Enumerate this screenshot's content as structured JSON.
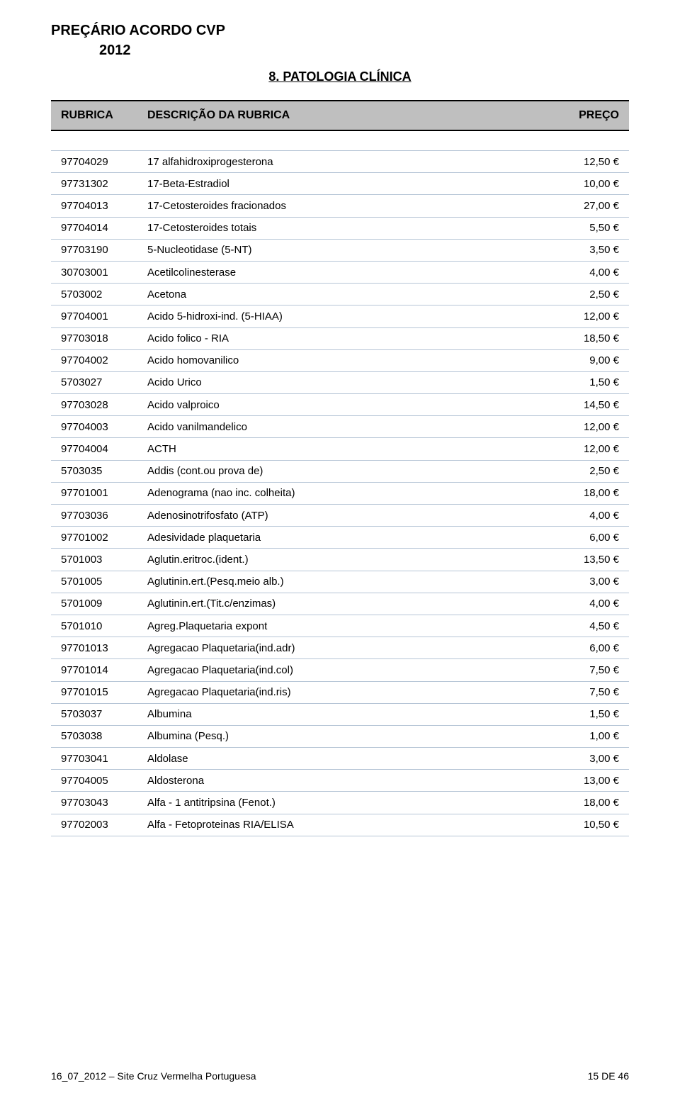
{
  "doc": {
    "title": "PREÇÁRIO ACORDO CVP",
    "year": "2012",
    "section": "8. PATOLOGIA CLÍNICA"
  },
  "header": {
    "rubrica": "RUBRICA",
    "descricao": "DESCRIÇÃO DA RUBRICA",
    "preco": "PREÇO"
  },
  "colors": {
    "header_bg": "#bfbfbf",
    "border_dark": "#000000",
    "row_border": "#b6c5d6",
    "page_bg": "#ffffff",
    "text": "#000000"
  },
  "rows": [
    {
      "code": "97704029",
      "desc": "17 alfahidroxiprogesterona",
      "price": "12,50 €"
    },
    {
      "code": "97731302",
      "desc": "17-Beta-Estradiol",
      "price": "10,00 €"
    },
    {
      "code": "97704013",
      "desc": "17-Cetosteroides fracionados",
      "price": "27,00 €"
    },
    {
      "code": "97704014",
      "desc": "17-Cetosteroides totais",
      "price": "5,50 €"
    },
    {
      "code": "97703190",
      "desc": "5-Nucleotidase (5-NT)",
      "price": "3,50 €"
    },
    {
      "code": "30703001",
      "desc": "Acetilcolinesterase",
      "price": "4,00 €"
    },
    {
      "code": "5703002",
      "desc": "Acetona",
      "price": "2,50 €"
    },
    {
      "code": "97704001",
      "desc": "Acido 5-hidroxi-ind. (5-HIAA)",
      "price": "12,00 €"
    },
    {
      "code": "97703018",
      "desc": "Acido folico - RIA",
      "price": "18,50 €"
    },
    {
      "code": "97704002",
      "desc": "Acido homovanilico",
      "price": "9,00 €"
    },
    {
      "code": "5703027",
      "desc": "Acido Urico",
      "price": "1,50 €"
    },
    {
      "code": "97703028",
      "desc": "Acido valproico",
      "price": "14,50 €"
    },
    {
      "code": "97704003",
      "desc": "Acido vanilmandelico",
      "price": "12,00 €"
    },
    {
      "code": "97704004",
      "desc": "ACTH",
      "price": "12,00 €"
    },
    {
      "code": "5703035",
      "desc": "Addis (cont.ou prova de)",
      "price": "2,50 €"
    },
    {
      "code": "97701001",
      "desc": "Adenograma (nao inc. colheita)",
      "price": "18,00 €"
    },
    {
      "code": "97703036",
      "desc": "Adenosinotrifosfato (ATP)",
      "price": "4,00 €"
    },
    {
      "code": "97701002",
      "desc": "Adesividade plaquetaria",
      "price": "6,00 €"
    },
    {
      "code": "5701003",
      "desc": "Aglutin.eritroc.(ident.)",
      "price": "13,50 €"
    },
    {
      "code": "5701005",
      "desc": "Aglutinin.ert.(Pesq.meio alb.)",
      "price": "3,00 €"
    },
    {
      "code": "5701009",
      "desc": "Aglutinin.ert.(Tit.c/enzimas)",
      "price": "4,00 €"
    },
    {
      "code": "5701010",
      "desc": "Agreg.Plaquetaria expont",
      "price": "4,50 €"
    },
    {
      "code": "97701013",
      "desc": "Agregacao Plaquetaria(ind.adr)",
      "price": "6,00 €"
    },
    {
      "code": "97701014",
      "desc": "Agregacao Plaquetaria(ind.col)",
      "price": "7,50 €"
    },
    {
      "code": "97701015",
      "desc": "Agregacao Plaquetaria(ind.ris)",
      "price": "7,50 €"
    },
    {
      "code": "5703037",
      "desc": "Albumina",
      "price": "1,50 €"
    },
    {
      "code": "5703038",
      "desc": "Albumina (Pesq.)",
      "price": "1,00 €"
    },
    {
      "code": "97703041",
      "desc": "Aldolase",
      "price": "3,00 €"
    },
    {
      "code": "97704005",
      "desc": "Aldosterona",
      "price": "13,00 €"
    },
    {
      "code": "97703043",
      "desc": "Alfa - 1 antitripsina (Fenot.)",
      "price": "18,00 €"
    },
    {
      "code": "97702003",
      "desc": "Alfa - Fetoproteinas RIA/ELISA",
      "price": "10,50 €"
    }
  ],
  "footer": {
    "left": "16_07_2012 – Site Cruz Vermelha Portuguesa",
    "right": "15 DE 46"
  }
}
